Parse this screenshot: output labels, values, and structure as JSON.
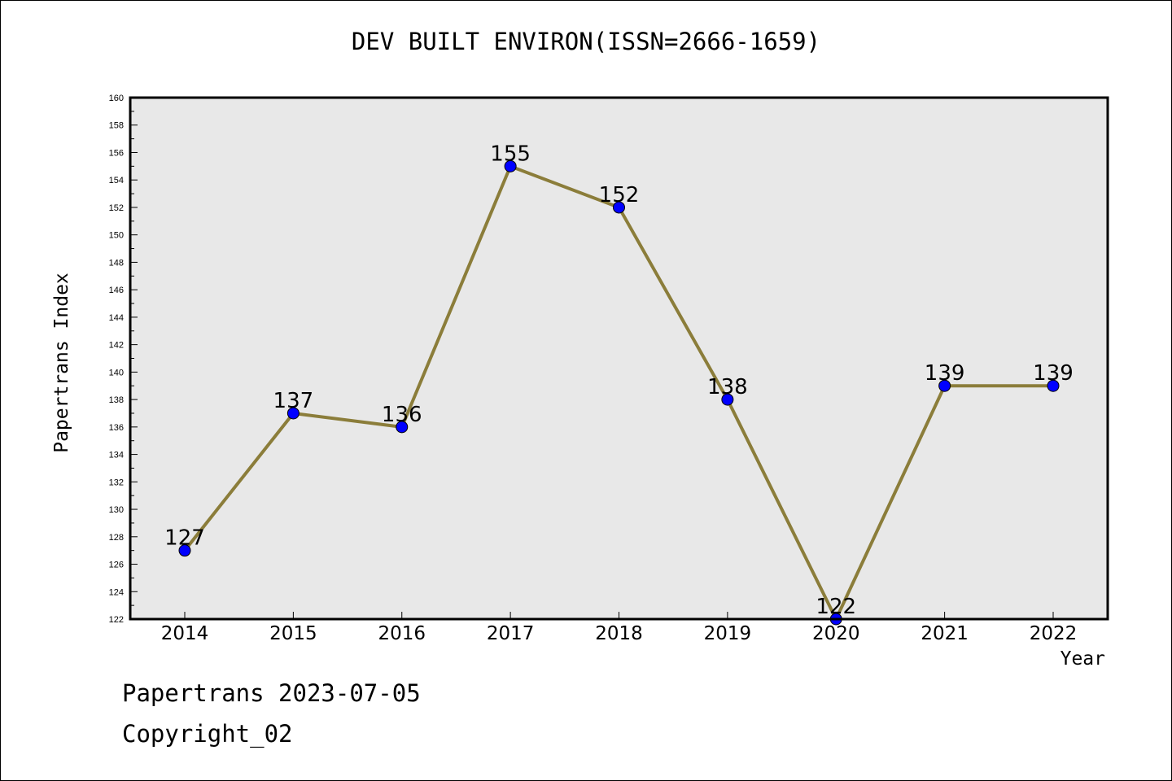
{
  "chart_data": {
    "type": "line",
    "title": "DEV BUILT ENVIRON(ISSN=2666-1659)",
    "xlabel": "Year",
    "ylabel": "Papertrans Index",
    "categories": [
      "2014",
      "2015",
      "2016",
      "2017",
      "2018",
      "2019",
      "2020",
      "2021",
      "2022"
    ],
    "series": [
      {
        "values": [
          127,
          137,
          136,
          155,
          152,
          138,
          122,
          139,
          139
        ]
      }
    ],
    "ylim": [
      122,
      160
    ],
    "yticks": [
      122,
      124,
      126,
      128,
      130,
      132,
      134,
      136,
      138,
      140,
      142,
      144,
      146,
      148,
      150,
      152,
      154,
      156,
      158,
      160
    ],
    "grid": false,
    "line_color": "#8B7D3A",
    "marker_color": "#0000FF",
    "plot_background": "#E8E8E8"
  },
  "footer": {
    "line1": "Papertrans 2023-07-05",
    "line2": "Copyright_02"
  }
}
